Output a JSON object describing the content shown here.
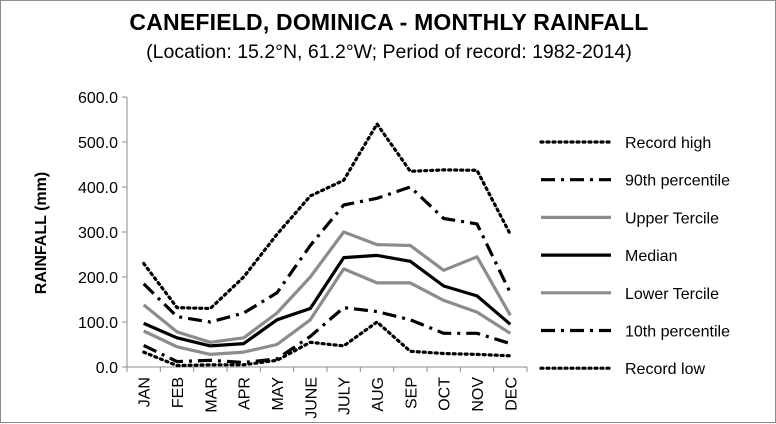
{
  "chart_data": {
    "type": "line",
    "title": "CANEFIELD, DOMINICA - MONTHLY RAINFALL",
    "subtitle": "(Location: 15.2°N, 61.2°W; Period of record: 1982-2014)",
    "xlabel": "",
    "ylabel": "RAINFALL (mm)",
    "ylim": [
      0,
      600
    ],
    "yticks": [
      "0.0",
      "100.0",
      "200.0",
      "300.0",
      "400.0",
      "500.0",
      "600.0"
    ],
    "categories": [
      "JAN",
      "FEB",
      "MAR",
      "APR",
      "MAY",
      "JUNE",
      "JULY",
      "AUG",
      "SEP",
      "OCT",
      "NOV",
      "DEC"
    ],
    "grid": false,
    "legend_position": "right",
    "series": [
      {
        "name": "Record high",
        "color": "#000000",
        "style": "dotted",
        "values": [
          230,
          132,
          130,
          200,
          295,
          380,
          415,
          540,
          435,
          438,
          437,
          295
        ]
      },
      {
        "name": "90th percentile",
        "color": "#000000",
        "style": "dashdot",
        "values": [
          185,
          112,
          100,
          120,
          165,
          270,
          360,
          375,
          400,
          330,
          318,
          165
        ]
      },
      {
        "name": "Upper Tercile",
        "color": "#8c8c8c",
        "style": "solid",
        "values": [
          138,
          78,
          55,
          65,
          120,
          200,
          300,
          272,
          270,
          215,
          245,
          115
        ]
      },
      {
        "name": "Median",
        "color": "#000000",
        "style": "solid",
        "values": [
          97,
          65,
          47,
          52,
          105,
          130,
          243,
          248,
          235,
          180,
          158,
          95
        ]
      },
      {
        "name": "Lower Tercile",
        "color": "#8c8c8c",
        "style": "solid",
        "values": [
          80,
          45,
          28,
          33,
          50,
          105,
          218,
          187,
          187,
          148,
          122,
          75
        ]
      },
      {
        "name": "10th percentile",
        "color": "#000000",
        "style": "dashdot",
        "values": [
          48,
          12,
          15,
          10,
          18,
          68,
          132,
          123,
          105,
          75,
          75,
          52
        ]
      },
      {
        "name": "Record low",
        "color": "#000000",
        "style": "dotted",
        "values": [
          33,
          3,
          5,
          5,
          15,
          55,
          47,
          100,
          35,
          30,
          28,
          25
        ]
      }
    ]
  }
}
